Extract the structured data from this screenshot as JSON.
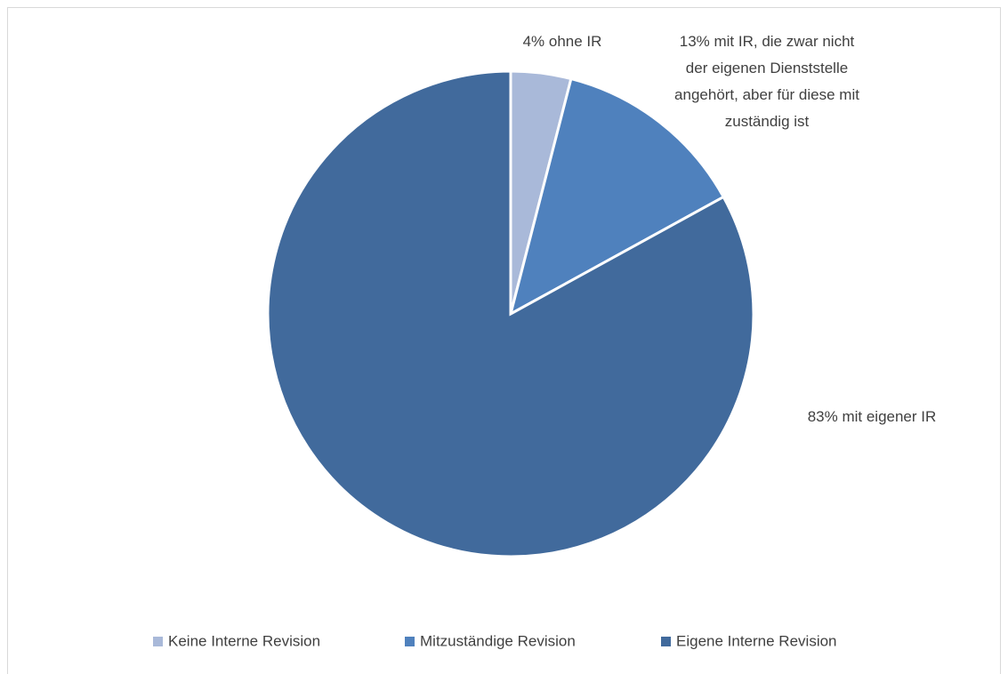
{
  "chart_data": {
    "type": "pie",
    "categories": [
      "Keine Interne Revision",
      "Mitzuständige Revision",
      "Eigene Interne Revision"
    ],
    "values": [
      4,
      13,
      83
    ],
    "value_labels": [
      "4% ohne IR",
      "13% mit IR, die zwar nicht der eigenen Dienststelle angehört, aber für diese mit zuständig ist",
      "83% mit eigener IR"
    ],
    "colors": [
      "#a9b9d9",
      "#4f81bd",
      "#416a9c"
    ],
    "legend": "bottom"
  }
}
